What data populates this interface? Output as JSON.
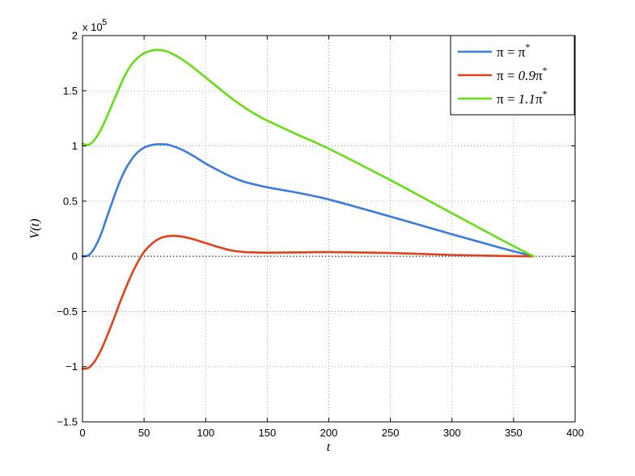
{
  "chart_data": {
    "type": "line",
    "xlabel": "t",
    "ylabel": "V(t)",
    "y_multiplier_label": "x 10",
    "y_multiplier_exponent": "5",
    "xlim": [
      0,
      400
    ],
    "ylim": [
      -1.5,
      2
    ],
    "x_ticks": [
      0,
      50,
      100,
      150,
      200,
      250,
      300,
      350,
      400
    ],
    "y_ticks": [
      -1.5,
      -1,
      -0.5,
      0,
      0.5,
      1,
      1.5,
      2
    ],
    "x_tick_labels": [
      "0",
      "50",
      "100",
      "150",
      "200",
      "250",
      "300",
      "350",
      "400"
    ],
    "y_tick_labels": [
      "−1.5",
      "−1",
      "−0.5",
      "0",
      "0.5",
      "1",
      "1.5",
      "2"
    ],
    "grid": true,
    "legend_position": "top-right",
    "series": [
      {
        "name": "π = π*",
        "legend": {
          "pre": "π = ",
          "italic": "",
          "post": "π",
          "sup": "*"
        },
        "color": "#3a7be0",
        "points": [
          [
            0,
            0
          ],
          [
            5,
            0.01
          ],
          [
            10,
            0.08
          ],
          [
            15,
            0.2
          ],
          [
            20,
            0.36
          ],
          [
            25,
            0.52
          ],
          [
            30,
            0.67
          ],
          [
            35,
            0.79
          ],
          [
            40,
            0.88
          ],
          [
            45,
            0.945
          ],
          [
            50,
            0.985
          ],
          [
            55,
            1.005
          ],
          [
            60,
            1.015
          ],
          [
            65,
            1.015
          ],
          [
            70,
            1.01
          ],
          [
            80,
            0.97
          ],
          [
            90,
            0.91
          ],
          [
            100,
            0.84
          ],
          [
            110,
            0.78
          ],
          [
            120,
            0.725
          ],
          [
            130,
            0.68
          ],
          [
            140,
            0.65
          ],
          [
            150,
            0.625
          ],
          [
            175,
            0.575
          ],
          [
            200,
            0.515
          ],
          [
            250,
            0.36
          ],
          [
            300,
            0.2
          ],
          [
            340,
            0.075
          ],
          [
            366,
            0
          ]
        ]
      },
      {
        "name": "π = 0.9π*",
        "legend": {
          "pre": "π = ",
          "italic": "0.9",
          "post": "π",
          "sup": "*"
        },
        "color": "#e0401a",
        "points": [
          [
            0,
            -1.02
          ],
          [
            5,
            -1.01
          ],
          [
            10,
            -0.95
          ],
          [
            15,
            -0.85
          ],
          [
            20,
            -0.72
          ],
          [
            25,
            -0.58
          ],
          [
            30,
            -0.43
          ],
          [
            35,
            -0.29
          ],
          [
            40,
            -0.16
          ],
          [
            45,
            -0.05
          ],
          [
            50,
            0.04
          ],
          [
            55,
            0.1
          ],
          [
            60,
            0.145
          ],
          [
            65,
            0.172
          ],
          [
            70,
            0.183
          ],
          [
            75,
            0.185
          ],
          [
            80,
            0.18
          ],
          [
            90,
            0.155
          ],
          [
            100,
            0.12
          ],
          [
            110,
            0.085
          ],
          [
            120,
            0.055
          ],
          [
            130,
            0.04
          ],
          [
            140,
            0.035
          ],
          [
            150,
            0.033
          ],
          [
            175,
            0.035
          ],
          [
            200,
            0.038
          ],
          [
            250,
            0.03
          ],
          [
            300,
            0.012
          ],
          [
            340,
            0.003
          ],
          [
            366,
            0
          ]
        ]
      },
      {
        "name": "π = 1.1π*",
        "legend": {
          "pre": "π = ",
          "italic": "1.1",
          "post": "π",
          "sup": "*"
        },
        "color": "#66dd11",
        "points": [
          [
            0,
            1.02
          ],
          [
            5,
            1.01
          ],
          [
            10,
            1.06
          ],
          [
            15,
            1.15
          ],
          [
            20,
            1.27
          ],
          [
            25,
            1.4
          ],
          [
            30,
            1.53
          ],
          [
            35,
            1.65
          ],
          [
            40,
            1.74
          ],
          [
            45,
            1.8
          ],
          [
            50,
            1.84
          ],
          [
            55,
            1.86
          ],
          [
            60,
            1.87
          ],
          [
            65,
            1.865
          ],
          [
            70,
            1.85
          ],
          [
            80,
            1.79
          ],
          [
            90,
            1.71
          ],
          [
            100,
            1.62
          ],
          [
            110,
            1.53
          ],
          [
            120,
            1.44
          ],
          [
            130,
            1.36
          ],
          [
            140,
            1.29
          ],
          [
            150,
            1.23
          ],
          [
            175,
            1.1
          ],
          [
            200,
            0.975
          ],
          [
            250,
            0.69
          ],
          [
            300,
            0.39
          ],
          [
            340,
            0.15
          ],
          [
            366,
            0
          ]
        ]
      }
    ]
  }
}
